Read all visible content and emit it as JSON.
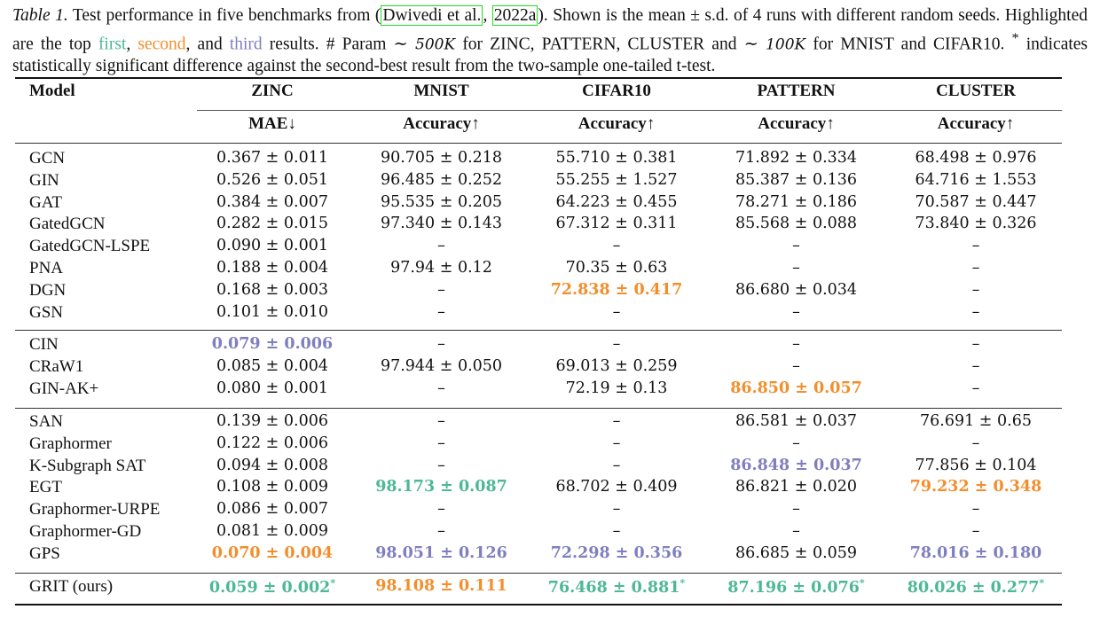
{
  "caption": {
    "label": "Table 1.",
    "text_part1": " Test performance in five benchmarks from (",
    "citation_authors": "Dwivedi et al.",
    "citation_sep": ", ",
    "citation_year": "2022a",
    "text_part2": "). Shown is the mean ± s.d. of 4 runs with different random seeds. Highlighted are the top ",
    "first_label": "first",
    "comma1": ", ",
    "second_label": "second",
    "comma2": ", and ",
    "third_label": "third",
    "text_part3": " results. # Param ∼ ",
    "param_500k": "500K",
    "text_part4": " for ZINC, PATTERN, CLUSTER and ∼ ",
    "param_100k": "100K",
    "text_part5": " for MNIST and CIFAR10. ",
    "asterisk": "*",
    "text_part6": " indicates statistically significant difference against the second-best result from the two-sample one-tailed t-test."
  },
  "colors": {
    "first": "#4cb894",
    "second": "#f28e2b",
    "third": "#7f7fbf",
    "citation_box": "#22dd22"
  },
  "table": {
    "model_header": "Model",
    "datasets": [
      "ZINC",
      "MNIST",
      "CIFAR10",
      "PATTERN",
      "CLUSTER"
    ],
    "metrics": [
      "MAE↓",
      "Accuracy↑",
      "Accuracy↑",
      "Accuracy↑",
      "Accuracy↑"
    ],
    "groups": [
      {
        "rows": [
          {
            "model": "GCN",
            "values": [
              "0.367 ± 0.011",
              "90.705 ± 0.218",
              "55.710 ± 0.381",
              "71.892 ± 0.334",
              "68.498 ± 0.976"
            ],
            "rank": [
              "",
              "",
              "",
              "",
              ""
            ]
          },
          {
            "model": "GIN",
            "values": [
              "0.526 ± 0.051",
              "96.485 ± 0.252",
              "55.255 ± 1.527",
              "85.387 ± 0.136",
              "64.716 ± 1.553"
            ],
            "rank": [
              "",
              "",
              "",
              "",
              ""
            ]
          },
          {
            "model": "GAT",
            "values": [
              "0.384 ± 0.007",
              "95.535 ± 0.205",
              "64.223 ± 0.455",
              "78.271 ± 0.186",
              "70.587 ± 0.447"
            ],
            "rank": [
              "",
              "",
              "",
              "",
              ""
            ]
          },
          {
            "model": "GatedGCN",
            "values": [
              "0.282 ± 0.015",
              "97.340 ± 0.143",
              "67.312 ± 0.311",
              "85.568 ± 0.088",
              "73.840 ± 0.326"
            ],
            "rank": [
              "",
              "",
              "",
              "",
              ""
            ]
          },
          {
            "model": "GatedGCN-LSPE",
            "values": [
              "0.090 ± 0.001",
              "–",
              "–",
              "–",
              "–"
            ],
            "rank": [
              "",
              "",
              "",
              "",
              ""
            ]
          },
          {
            "model": "PNA",
            "values": [
              "0.188 ± 0.004",
              "97.94 ± 0.12",
              "70.35 ± 0.63",
              "–",
              "–"
            ],
            "rank": [
              "",
              "",
              "",
              "",
              ""
            ]
          },
          {
            "model": "DGN",
            "values": [
              "0.168 ± 0.003",
              "–",
              "72.838 ± 0.417",
              "86.680 ± 0.034",
              "–"
            ],
            "rank": [
              "",
              "",
              "second",
              "",
              ""
            ]
          },
          {
            "model": "GSN",
            "values": [
              "0.101 ± 0.010",
              "–",
              "–",
              "–",
              "–"
            ],
            "rank": [
              "",
              "",
              "",
              "",
              ""
            ]
          }
        ]
      },
      {
        "rows": [
          {
            "model": "CIN",
            "values": [
              "0.079 ± 0.006",
              "–",
              "–",
              "–",
              "–"
            ],
            "rank": [
              "third",
              "",
              "",
              "",
              ""
            ]
          },
          {
            "model": "CRaW1",
            "values": [
              "0.085 ± 0.004",
              "97.944 ± 0.050",
              "69.013 ± 0.259",
              "–",
              "–"
            ],
            "rank": [
              "",
              "",
              "",
              "",
              ""
            ]
          },
          {
            "model": "GIN-AK+",
            "values": [
              "0.080 ± 0.001",
              "–",
              "72.19 ± 0.13",
              "86.850 ± 0.057",
              "–"
            ],
            "rank": [
              "",
              "",
              "",
              "second",
              ""
            ]
          }
        ]
      },
      {
        "rows": [
          {
            "model": "SAN",
            "values": [
              "0.139 ± 0.006",
              "–",
              "–",
              "86.581 ± 0.037",
              "76.691 ± 0.65"
            ],
            "rank": [
              "",
              "",
              "",
              "",
              ""
            ]
          },
          {
            "model": "Graphormer",
            "values": [
              "0.122 ± 0.006",
              "–",
              "–",
              "–",
              "–"
            ],
            "rank": [
              "",
              "",
              "",
              "",
              ""
            ]
          },
          {
            "model": "K-Subgraph SAT",
            "values": [
              "0.094 ± 0.008",
              "–",
              "–",
              "86.848 ± 0.037",
              "77.856 ± 0.104"
            ],
            "rank": [
              "",
              "",
              "",
              "third",
              ""
            ]
          },
          {
            "model": "EGT",
            "values": [
              "0.108 ± 0.009",
              "98.173 ± 0.087",
              "68.702 ± 0.409",
              "86.821 ± 0.020",
              "79.232 ± 0.348"
            ],
            "rank": [
              "",
              "first",
              "",
              "",
              "second"
            ]
          },
          {
            "model": "Graphormer-URPE",
            "values": [
              "0.086 ± 0.007",
              "–",
              "–",
              "–",
              "–"
            ],
            "rank": [
              "",
              "",
              "",
              "",
              ""
            ]
          },
          {
            "model": "Graphormer-GD",
            "values": [
              "0.081 ± 0.009",
              "–",
              "–",
              "–",
              "–"
            ],
            "rank": [
              "",
              "",
              "",
              "",
              ""
            ]
          },
          {
            "model": "GPS",
            "values": [
              "0.070 ± 0.004",
              "98.051 ± 0.126",
              "72.298 ± 0.356",
              "86.685 ± 0.059",
              "78.016 ± 0.180"
            ],
            "rank": [
              "second",
              "third",
              "third",
              "",
              "third"
            ]
          }
        ]
      },
      {
        "rows": [
          {
            "model": "GRIT (ours)",
            "values": [
              "0.059 ± 0.002",
              "98.108 ± 0.111",
              "76.468 ± 0.881",
              "87.196 ± 0.076",
              "80.026 ± 0.277"
            ],
            "rank": [
              "first",
              "second",
              "first",
              "first",
              "first"
            ],
            "significant": [
              true,
              false,
              true,
              true,
              true
            ]
          }
        ]
      }
    ]
  }
}
